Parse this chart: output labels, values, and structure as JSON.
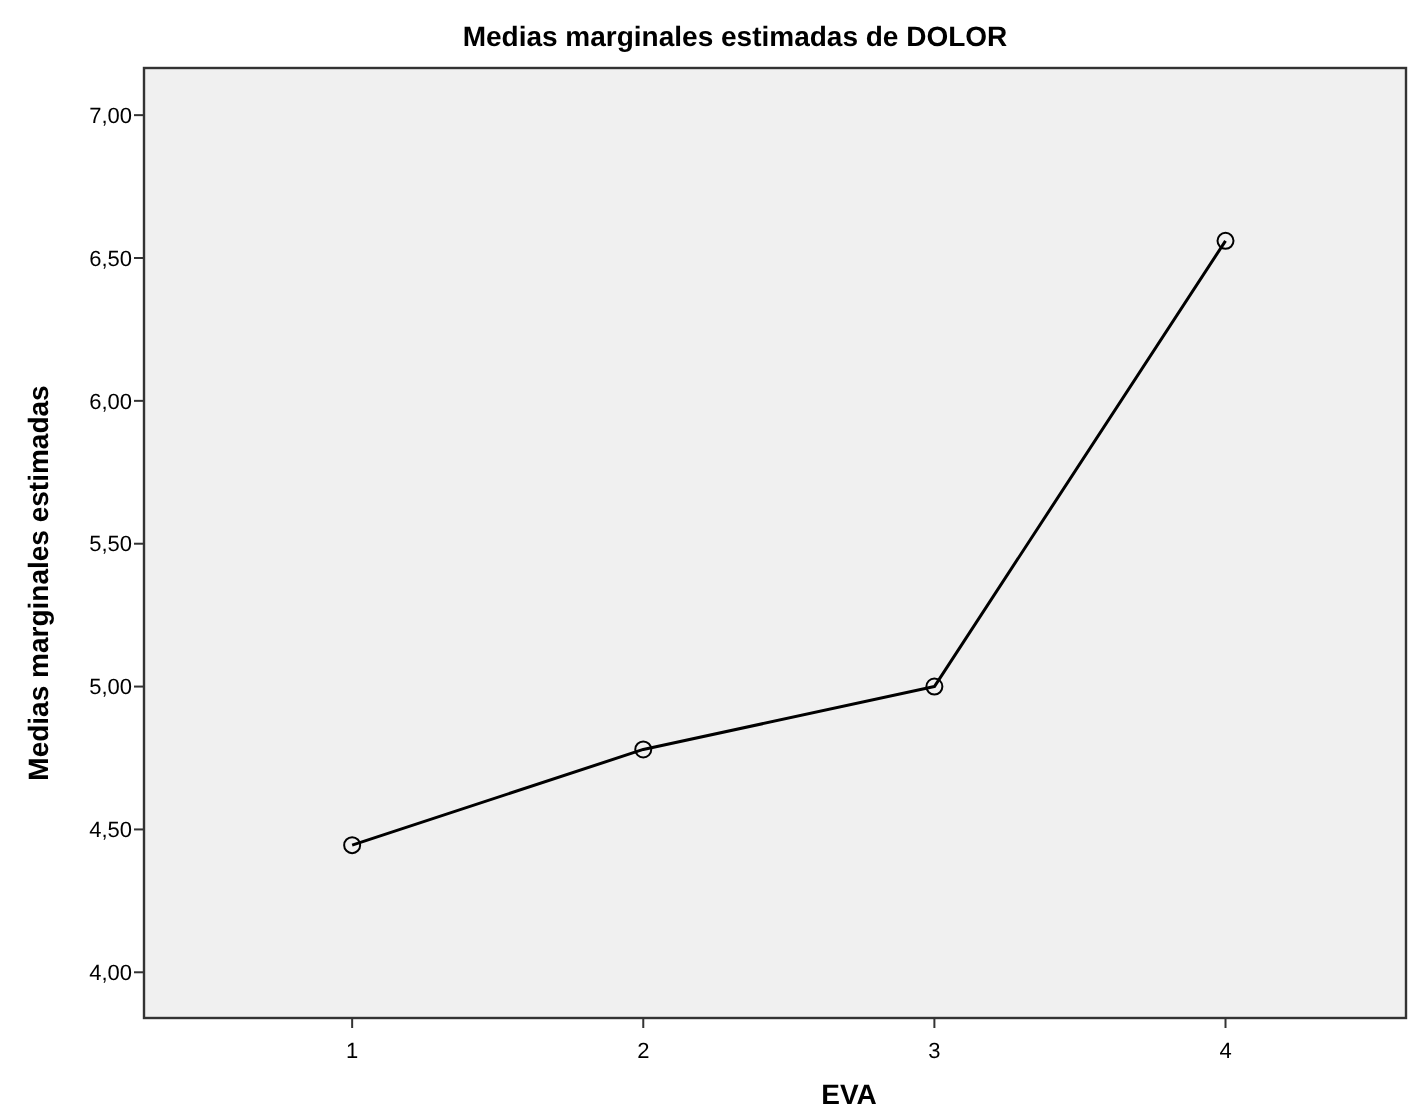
{
  "chart_data": {
    "type": "line",
    "title": "Medias marginales estimadas de DOLOR",
    "xlabel": "EVA",
    "ylabel": "Medias marginales estimadas",
    "categories": [
      "1",
      "2",
      "3",
      "4"
    ],
    "series": [
      {
        "color": "#000000",
        "values": [
          4.445,
          4.78,
          5.0,
          6.56
        ]
      }
    ],
    "ylim": [
      3.84,
      7.165
    ],
    "yticks": [
      {
        "value": 4,
        "label": "4,00"
      },
      {
        "value": 4.5,
        "label": "4,50"
      },
      {
        "value": 5,
        "label": "5,00"
      },
      {
        "value": 5.5,
        "label": "5,50"
      },
      {
        "value": 6,
        "label": "6,00"
      },
      {
        "value": 6.5,
        "label": "6,50"
      },
      {
        "value": 7,
        "label": "7,00"
      }
    ],
    "marker": "circle",
    "line_style": "solid"
  }
}
